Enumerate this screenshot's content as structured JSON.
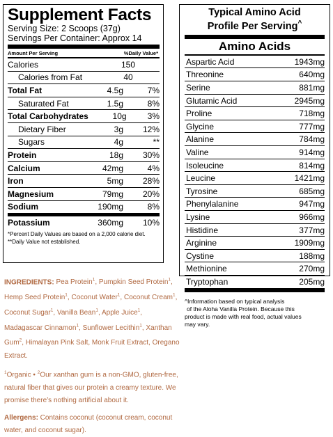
{
  "supplement_facts": {
    "title": "Supplement Facts",
    "serving_size": "Serving Size: 2 Scoops (37g)",
    "servings_per_container": "Servings Per Container: Approx 14",
    "col_amount": "Amount Per Serving",
    "col_dv": "%Daily Value*",
    "rows": [
      {
        "label": "Calories",
        "amount": "150",
        "dv": ""
      },
      {
        "label": "Calories from Fat",
        "amount": "40",
        "dv": ""
      },
      {
        "label": "Total Fat",
        "amount": "4.5g",
        "dv": "7%"
      },
      {
        "label": "Saturated Fat",
        "amount": "1.5g",
        "dv": "8%"
      },
      {
        "label": "Total Carbohydrates",
        "amount": "10g",
        "dv": "3%"
      },
      {
        "label": "Dietary Fiber",
        "amount": "3g",
        "dv": "12%"
      },
      {
        "label": "Sugars",
        "amount": "4g",
        "dv": "**"
      },
      {
        "label": "Protein",
        "amount": "18g",
        "dv": "30%"
      },
      {
        "label": "Calcium",
        "amount": "42mg",
        "dv": "4%"
      },
      {
        "label": "Iron",
        "amount": "5mg",
        "dv": "28%"
      },
      {
        "label": "Magnesium",
        "amount": "79mg",
        "dv": "20%"
      },
      {
        "label": "Sodium",
        "amount": "190mg",
        "dv": "8%"
      },
      {
        "label": "Potassium",
        "amount": "360mg",
        "dv": "10%"
      }
    ],
    "footnote1": "*Percent Daily Values are based on a 2,000 calorie diet.",
    "footnote2": "**Daily Value not established."
  },
  "amino": {
    "title_line1": "Typical Amino Acid",
    "title_line2": "Profile Per Serving",
    "caret": "^",
    "header": "Amino Acids",
    "rows": [
      {
        "name": "Aspartic Acid",
        "value": "1943mg"
      },
      {
        "name": "Threonine",
        "value": "640mg"
      },
      {
        "name": "Serine",
        "value": "881mg"
      },
      {
        "name": "Glutamic Acid",
        "value": "2945mg"
      },
      {
        "name": "Proline",
        "value": "718mg"
      },
      {
        "name": "Glycine",
        "value": "777mg"
      },
      {
        "name": "Alanine",
        "value": "784mg"
      },
      {
        "name": "Valine",
        "value": "914mg"
      },
      {
        "name": "Isoleucine",
        "value": "814mg"
      },
      {
        "name": "Leucine",
        "value": "1421mg"
      },
      {
        "name": "Tyrosine",
        "value": "685mg"
      },
      {
        "name": "Phenylalanine",
        "value": "947mg"
      },
      {
        "name": "Lysine",
        "value": "966mg"
      },
      {
        "name": "Histidine",
        "value": "377mg"
      },
      {
        "name": "Arginine",
        "value": "1909mg"
      },
      {
        "name": "Cystine",
        "value": "188mg"
      },
      {
        "name": "Methionine",
        "value": "270mg"
      },
      {
        "name": "Tryptophan",
        "value": "205mg"
      }
    ],
    "note_line1": "^Information based on typical analysis",
    "note_line2": "of the Aloha Vanilla Protein. Because this",
    "note_line3": "product is made with real food, actual values",
    "note_line4": "may vary."
  },
  "ingredients": {
    "label": "INGREDIENTS:",
    "items": [
      {
        "name": "Pea Protein",
        "mark": "1",
        "sep": ", "
      },
      {
        "name": "Pumpkin Seed Protein",
        "mark": "1",
        "sep": ", "
      },
      {
        "name": "Hemp Seed Protein",
        "mark": "1",
        "sep": ", "
      },
      {
        "name": "Coconut Water",
        "mark": "1",
        "sep": ", "
      },
      {
        "name": "Coconut Cream",
        "mark": "1",
        "sep": ", "
      },
      {
        "name": "Coconut Sugar",
        "mark": "1",
        "sep": ", "
      },
      {
        "name": "Vanilla Bean",
        "mark": "1",
        "sep": ", "
      },
      {
        "name": "Apple Juice",
        "mark": "1",
        "sep": ", "
      },
      {
        "name": "Madagascar Cinnamon",
        "mark": "1",
        "sep": ", "
      },
      {
        "name": "Sunflower Lecithin",
        "mark": "1",
        "sep": ", "
      },
      {
        "name": "Xanthan Gum",
        "mark": "2",
        "sep": ", "
      },
      {
        "name": "Himalayan Pink Salt",
        "mark": "",
        "sep": ", "
      },
      {
        "name": "Monk Fruit Extract",
        "mark": "",
        "sep": ", "
      },
      {
        "name": "Oregano Extract",
        "mark": "",
        "sep": "."
      }
    ],
    "organic_note": "Organic • ",
    "organic_mark": "1",
    "xanthan_mark": "2",
    "xanthan_note": "Our xanthan gum is a non-GMO, gluten-free, natural fiber that gives our protein a creamy texture. We promise there’s nothing artificial about it.",
    "allergens_label": "Allergens:",
    "allergens_text": " Contains coconut (coconut cream, coconut water, and coconut sugar)."
  },
  "colors": {
    "ingredients_text": "#b06840"
  }
}
